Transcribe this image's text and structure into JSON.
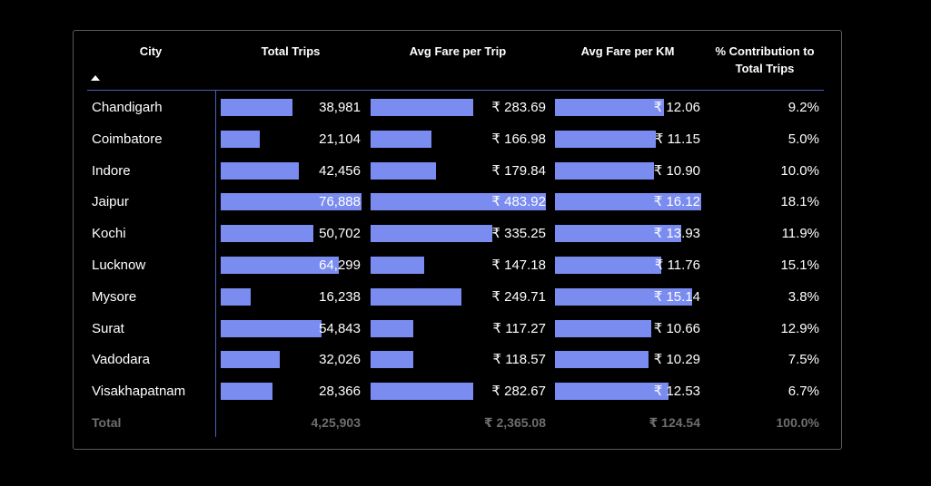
{
  "table": {
    "headers": {
      "city": "City",
      "total_trips": "Total Trips",
      "avg_fare_trip": "Avg Fare per Trip",
      "avg_fare_km": "Avg Fare per KM",
      "contribution_line1": "% Contribution to",
      "contribution_line2": "Total Trips"
    },
    "sort": {
      "column": "city",
      "direction": "ascending"
    },
    "bar_color": "#7b8cf0",
    "rows": [
      {
        "city": "Chandigarh",
        "trips": "38,981",
        "fare_trip": "₹ 283.69",
        "fare_km": "₹ 12.06",
        "contribution": "9.2%"
      },
      {
        "city": "Coimbatore",
        "trips": "21,104",
        "fare_trip": "₹ 166.98",
        "fare_km": "₹ 11.15",
        "contribution": "5.0%"
      },
      {
        "city": "Indore",
        "trips": "42,456",
        "fare_trip": "₹ 179.84",
        "fare_km": "₹ 10.90",
        "contribution": "10.0%"
      },
      {
        "city": "Jaipur",
        "trips": "76,888",
        "fare_trip": "₹ 483.92",
        "fare_km": "₹ 16.12",
        "contribution": "18.1%"
      },
      {
        "city": "Kochi",
        "trips": "50,702",
        "fare_trip": "₹ 335.25",
        "fare_km": "₹ 13.93",
        "contribution": "11.9%"
      },
      {
        "city": "Lucknow",
        "trips": "64,299",
        "fare_trip": "₹ 147.18",
        "fare_km": "₹ 11.76",
        "contribution": "15.1%"
      },
      {
        "city": "Mysore",
        "trips": "16,238",
        "fare_trip": "₹ 249.71",
        "fare_km": "₹ 15.14",
        "contribution": "3.8%"
      },
      {
        "city": "Surat",
        "trips": "54,843",
        "fare_trip": "₹ 117.27",
        "fare_km": "₹ 10.66",
        "contribution": "12.9%"
      },
      {
        "city": "Vadodara",
        "trips": "32,026",
        "fare_trip": "₹ 118.57",
        "fare_km": "₹ 10.29",
        "contribution": "7.5%"
      },
      {
        "city": "Visakhapatnam",
        "trips": "28,366",
        "fare_trip": "₹ 282.67",
        "fare_km": "₹ 12.53",
        "contribution": "6.7%"
      }
    ],
    "total": {
      "label": "Total",
      "trips": "4,25,903",
      "fare_trip": "₹ 2,365.08",
      "fare_km": "₹ 124.54",
      "contribution": "100.0%"
    }
  }
}
